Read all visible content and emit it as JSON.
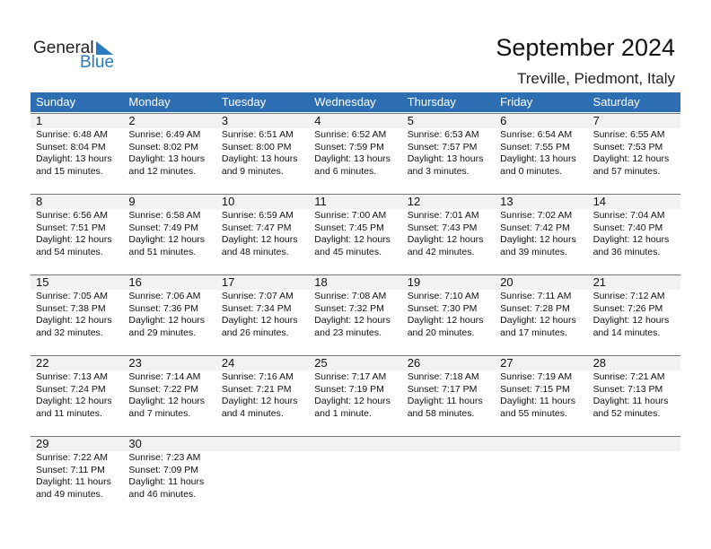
{
  "logo": {
    "line1": "General",
    "line2": "Blue",
    "accent": "#2a7bc4"
  },
  "title": "September 2024",
  "location": "Treville, Piedmont, Italy",
  "colors": {
    "header": "#2e6fb3",
    "band": "#f2f2f2"
  },
  "weekdays": [
    "Sunday",
    "Monday",
    "Tuesday",
    "Wednesday",
    "Thursday",
    "Friday",
    "Saturday"
  ],
  "days": [
    {
      "d": "1",
      "lines": [
        "Sunrise: 6:48 AM",
        "Sunset: 8:04 PM",
        "Daylight: 13 hours",
        "and 15 minutes."
      ]
    },
    {
      "d": "2",
      "lines": [
        "Sunrise: 6:49 AM",
        "Sunset: 8:02 PM",
        "Daylight: 13 hours",
        "and 12 minutes."
      ]
    },
    {
      "d": "3",
      "lines": [
        "Sunrise: 6:51 AM",
        "Sunset: 8:00 PM",
        "Daylight: 13 hours",
        "and 9 minutes."
      ]
    },
    {
      "d": "4",
      "lines": [
        "Sunrise: 6:52 AM",
        "Sunset: 7:59 PM",
        "Daylight: 13 hours",
        "and 6 minutes."
      ]
    },
    {
      "d": "5",
      "lines": [
        "Sunrise: 6:53 AM",
        "Sunset: 7:57 PM",
        "Daylight: 13 hours",
        "and 3 minutes."
      ]
    },
    {
      "d": "6",
      "lines": [
        "Sunrise: 6:54 AM",
        "Sunset: 7:55 PM",
        "Daylight: 13 hours",
        "and 0 minutes."
      ]
    },
    {
      "d": "7",
      "lines": [
        "Sunrise: 6:55 AM",
        "Sunset: 7:53 PM",
        "Daylight: 12 hours",
        "and 57 minutes."
      ]
    },
    {
      "d": "8",
      "lines": [
        "Sunrise: 6:56 AM",
        "Sunset: 7:51 PM",
        "Daylight: 12 hours",
        "and 54 minutes."
      ]
    },
    {
      "d": "9",
      "lines": [
        "Sunrise: 6:58 AM",
        "Sunset: 7:49 PM",
        "Daylight: 12 hours",
        "and 51 minutes."
      ]
    },
    {
      "d": "10",
      "lines": [
        "Sunrise: 6:59 AM",
        "Sunset: 7:47 PM",
        "Daylight: 12 hours",
        "and 48 minutes."
      ]
    },
    {
      "d": "11",
      "lines": [
        "Sunrise: 7:00 AM",
        "Sunset: 7:45 PM",
        "Daylight: 12 hours",
        "and 45 minutes."
      ]
    },
    {
      "d": "12",
      "lines": [
        "Sunrise: 7:01 AM",
        "Sunset: 7:43 PM",
        "Daylight: 12 hours",
        "and 42 minutes."
      ]
    },
    {
      "d": "13",
      "lines": [
        "Sunrise: 7:02 AM",
        "Sunset: 7:42 PM",
        "Daylight: 12 hours",
        "and 39 minutes."
      ]
    },
    {
      "d": "14",
      "lines": [
        "Sunrise: 7:04 AM",
        "Sunset: 7:40 PM",
        "Daylight: 12 hours",
        "and 36 minutes."
      ]
    },
    {
      "d": "15",
      "lines": [
        "Sunrise: 7:05 AM",
        "Sunset: 7:38 PM",
        "Daylight: 12 hours",
        "and 32 minutes."
      ]
    },
    {
      "d": "16",
      "lines": [
        "Sunrise: 7:06 AM",
        "Sunset: 7:36 PM",
        "Daylight: 12 hours",
        "and 29 minutes."
      ]
    },
    {
      "d": "17",
      "lines": [
        "Sunrise: 7:07 AM",
        "Sunset: 7:34 PM",
        "Daylight: 12 hours",
        "and 26 minutes."
      ]
    },
    {
      "d": "18",
      "lines": [
        "Sunrise: 7:08 AM",
        "Sunset: 7:32 PM",
        "Daylight: 12 hours",
        "and 23 minutes."
      ]
    },
    {
      "d": "19",
      "lines": [
        "Sunrise: 7:10 AM",
        "Sunset: 7:30 PM",
        "Daylight: 12 hours",
        "and 20 minutes."
      ]
    },
    {
      "d": "20",
      "lines": [
        "Sunrise: 7:11 AM",
        "Sunset: 7:28 PM",
        "Daylight: 12 hours",
        "and 17 minutes."
      ]
    },
    {
      "d": "21",
      "lines": [
        "Sunrise: 7:12 AM",
        "Sunset: 7:26 PM",
        "Daylight: 12 hours",
        "and 14 minutes."
      ]
    },
    {
      "d": "22",
      "lines": [
        "Sunrise: 7:13 AM",
        "Sunset: 7:24 PM",
        "Daylight: 12 hours",
        "and 11 minutes."
      ]
    },
    {
      "d": "23",
      "lines": [
        "Sunrise: 7:14 AM",
        "Sunset: 7:22 PM",
        "Daylight: 12 hours",
        "and 7 minutes."
      ]
    },
    {
      "d": "24",
      "lines": [
        "Sunrise: 7:16 AM",
        "Sunset: 7:21 PM",
        "Daylight: 12 hours",
        "and 4 minutes."
      ]
    },
    {
      "d": "25",
      "lines": [
        "Sunrise: 7:17 AM",
        "Sunset: 7:19 PM",
        "Daylight: 12 hours",
        "and 1 minute."
      ]
    },
    {
      "d": "26",
      "lines": [
        "Sunrise: 7:18 AM",
        "Sunset: 7:17 PM",
        "Daylight: 11 hours",
        "and 58 minutes."
      ]
    },
    {
      "d": "27",
      "lines": [
        "Sunrise: 7:19 AM",
        "Sunset: 7:15 PM",
        "Daylight: 11 hours",
        "and 55 minutes."
      ]
    },
    {
      "d": "28",
      "lines": [
        "Sunrise: 7:21 AM",
        "Sunset: 7:13 PM",
        "Daylight: 11 hours",
        "and 52 minutes."
      ]
    },
    {
      "d": "29",
      "lines": [
        "Sunrise: 7:22 AM",
        "Sunset: 7:11 PM",
        "Daylight: 11 hours",
        "and 49 minutes."
      ]
    },
    {
      "d": "30",
      "lines": [
        "Sunrise: 7:23 AM",
        "Sunset: 7:09 PM",
        "Daylight: 11 hours",
        "and 46 minutes."
      ]
    }
  ]
}
